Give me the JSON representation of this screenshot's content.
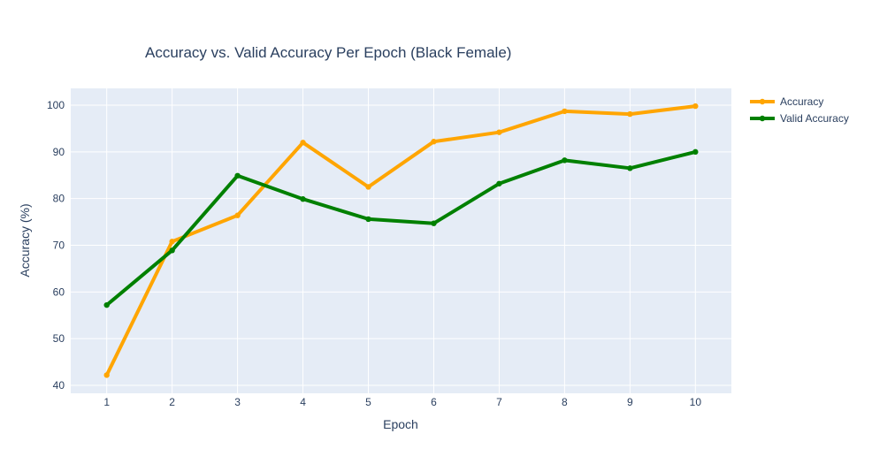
{
  "chart_data": {
    "type": "line",
    "title": "Accuracy vs. Valid Accuracy Per Epoch (Black Female)",
    "xlabel": "Epoch",
    "ylabel": "Accuracy (%)",
    "x": [
      1,
      2,
      3,
      4,
      5,
      6,
      7,
      8,
      9,
      10
    ],
    "xlim": [
      0.45,
      10.55
    ],
    "ylim": [
      38.3,
      103.6
    ],
    "yticks": [
      40,
      50,
      60,
      70,
      80,
      90,
      100
    ],
    "grid": true,
    "legend_position": "top-right",
    "plot_background": "#e5ecf6",
    "series": [
      {
        "name": "Accuracy",
        "color": "#ffa500",
        "values": [
          42.2,
          70.8,
          76.4,
          92.0,
          82.5,
          92.2,
          94.2,
          98.7,
          98.1,
          99.8
        ]
      },
      {
        "name": "Valid Accuracy",
        "color": "#008000",
        "values": [
          57.2,
          68.9,
          84.9,
          79.9,
          75.6,
          74.7,
          83.2,
          88.2,
          86.5,
          90.0
        ]
      }
    ]
  }
}
